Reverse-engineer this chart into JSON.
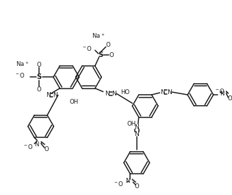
{
  "bg_color": "#ffffff",
  "line_color": "#1a1a1a",
  "line_width": 1.1,
  "figsize": [
    3.39,
    2.84
  ],
  "dpi": 100,
  "font_size": 6.2,
  "font_color": "#1a1a1a",
  "xlim": [
    -0.15,
    3.24
  ],
  "ylim": [
    -0.1,
    2.74
  ]
}
